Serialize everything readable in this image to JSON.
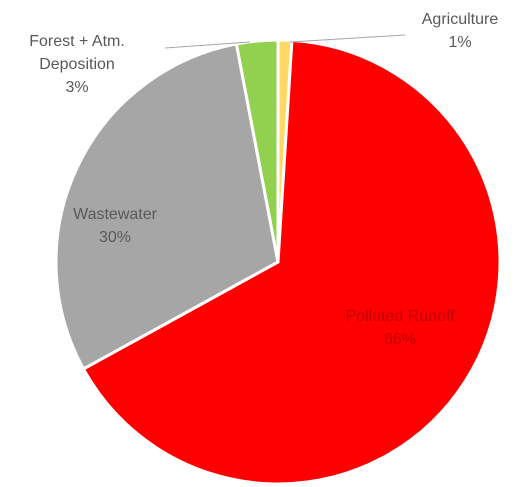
{
  "chart_data": {
    "type": "pie",
    "categories": [
      "Agriculture",
      "Polluted Runoff",
      "Wastewater",
      "Forest + Atm. Deposition"
    ],
    "values": [
      1,
      66,
      30,
      3
    ],
    "value_labels": [
      "1%",
      "66%",
      "30%",
      "3%"
    ],
    "colors": [
      "#ffd966",
      "#ff0000",
      "#a6a6a6",
      "#92d050"
    ]
  }
}
